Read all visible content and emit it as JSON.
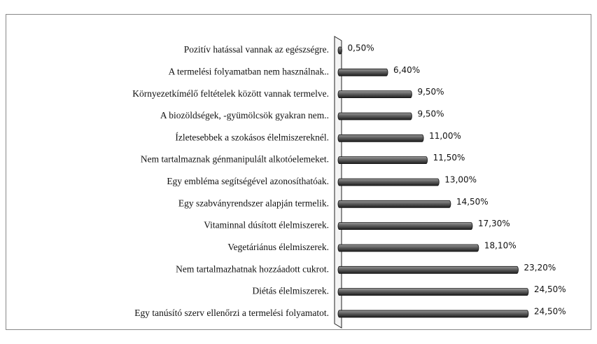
{
  "chart_data": {
    "type": "bar",
    "orientation": "horizontal",
    "color": "#555555",
    "categories": [
      "Pozitív hatással vannak az egészségre.",
      "A termelési folyamatban nem használnak..",
      "Környezetkímélő feltételek között vannak termelve.",
      "A biozöldségek, -gyümölcsök gyakran nem..",
      "Ízletesebbek a szokásos élelmiszereknél.",
      "Nem tartalmaznak génmanipulált alkotóelemeket.",
      "Egy embléma segítségével azonosíthatóak.",
      "Egy szabványrendszer alapján termelik.",
      "Vitaminnal dúsított élelmiszerek.",
      "Vegetáriánus élelmiszerek.",
      "Nem tartalmazhatnak hozzáadott cukrot.",
      "Diétás élelmiszerek.",
      "Egy tanúsító szerv ellenőrzi a termelési folyamatot."
    ],
    "values": [
      0.5,
      6.4,
      9.5,
      9.5,
      11.0,
      11.5,
      13.0,
      14.5,
      17.3,
      18.1,
      23.2,
      24.5,
      24.5
    ],
    "value_labels": [
      "0,50%",
      "6,40%",
      "9,50%",
      "9,50%",
      "11,00%",
      "11,50%",
      "13,00%",
      "14,50%",
      "17,30%",
      "18,10%",
      "23,20%",
      "24,50%",
      "24,50%"
    ]
  }
}
